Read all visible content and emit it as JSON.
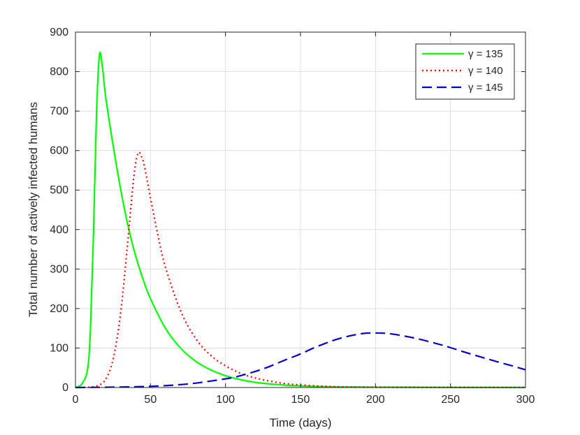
{
  "chart_data": {
    "type": "line",
    "title": "",
    "xlabel": "Time (days)",
    "ylabel": "Total number of actively infected humans",
    "xlim": [
      0,
      300
    ],
    "ylim": [
      0,
      900
    ],
    "xticks": [
      0,
      50,
      100,
      150,
      200,
      250,
      300
    ],
    "yticks": [
      0,
      100,
      200,
      300,
      400,
      500,
      600,
      700,
      800,
      900
    ],
    "grid": true,
    "legend_position": "top-right",
    "series": [
      {
        "name": "γ = 135",
        "color": "#00ff00",
        "dash": "solid",
        "x": [
          0,
          4,
          8,
          10,
          12,
          14,
          16,
          18,
          20,
          25,
          30,
          35,
          40,
          45,
          50,
          60,
          70,
          80,
          90,
          100,
          110,
          120,
          130,
          140,
          150,
          160,
          180,
          200,
          250,
          300
        ],
        "y": [
          0,
          8,
          45,
          150,
          390,
          690,
          843,
          810,
          740,
          615,
          505,
          410,
          335,
          275,
          225,
          150,
          100,
          67,
          45,
          30,
          20,
          13,
          9,
          6,
          4,
          2.7,
          1.5,
          1,
          0.5,
          0.3
        ]
      },
      {
        "name": "γ = 140",
        "color": "#ff0000",
        "dash": "dotted",
        "x": [
          0,
          10,
          15,
          20,
          25,
          30,
          35,
          38,
          40,
          42,
          44,
          46,
          50,
          55,
          60,
          70,
          80,
          90,
          100,
          110,
          120,
          130,
          140,
          150,
          160,
          170,
          180,
          200,
          250,
          300
        ],
        "y": [
          0,
          1,
          5,
          20,
          70,
          185,
          375,
          500,
          565,
          595,
          585,
          560,
          480,
          385,
          305,
          195,
          125,
          82,
          55,
          36,
          24,
          16,
          10,
          6.5,
          4,
          2.5,
          1.5,
          0.7,
          0.2,
          0.1
        ],
        "note_": ""
      },
      {
        "name": "γ = 145",
        "color": "#0000cc",
        "dash": "dashed",
        "x": [
          0,
          25,
          50,
          75,
          100,
          110,
          125,
          140,
          150,
          160,
          175,
          190,
          200,
          210,
          225,
          240,
          250,
          260,
          275,
          290,
          300
        ],
        "y": [
          0,
          1,
          3,
          9,
          22,
          30,
          47,
          70,
          85,
          102,
          123,
          136,
          138,
          136,
          126,
          112,
          101,
          89,
          72,
          56,
          45
        ]
      }
    ]
  }
}
